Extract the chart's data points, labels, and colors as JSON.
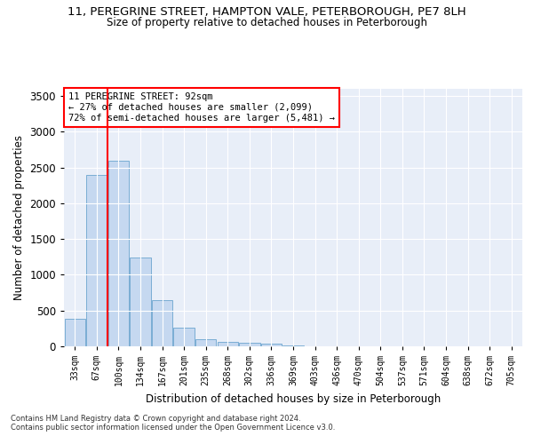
{
  "title_line1": "11, PEREGRINE STREET, HAMPTON VALE, PETERBOROUGH, PE7 8LH",
  "title_line2": "Size of property relative to detached houses in Peterborough",
  "xlabel": "Distribution of detached houses by size in Peterborough",
  "ylabel": "Number of detached properties",
  "footer_line1": "Contains HM Land Registry data © Crown copyright and database right 2024.",
  "footer_line2": "Contains public sector information licensed under the Open Government Licence v3.0.",
  "annotation_line1": "11 PEREGRINE STREET: 92sqm",
  "annotation_line2": "← 27% of detached houses are smaller (2,099)",
  "annotation_line3": "72% of semi-detached houses are larger (5,481) →",
  "bar_color": "#c5d8f0",
  "bar_edge_color": "#7aadd4",
  "vline_color": "red",
  "background_color": "#e8eef8",
  "annotation_box_edge_color": "red",
  "categories": [
    "33sqm",
    "67sqm",
    "100sqm",
    "134sqm",
    "167sqm",
    "201sqm",
    "235sqm",
    "268sqm",
    "302sqm",
    "336sqm",
    "369sqm",
    "403sqm",
    "436sqm",
    "470sqm",
    "504sqm",
    "537sqm",
    "571sqm",
    "604sqm",
    "638sqm",
    "672sqm",
    "705sqm"
  ],
  "values": [
    390,
    2400,
    2600,
    1240,
    640,
    255,
    95,
    60,
    55,
    40,
    15,
    5,
    0,
    0,
    0,
    0,
    0,
    0,
    0,
    0,
    0
  ],
  "ylim": [
    0,
    3600
  ],
  "yticks": [
    0,
    500,
    1000,
    1500,
    2000,
    2500,
    3000,
    3500
  ],
  "vline_x_index": 2,
  "figwidth": 6.0,
  "figheight": 5.0,
  "dpi": 100
}
